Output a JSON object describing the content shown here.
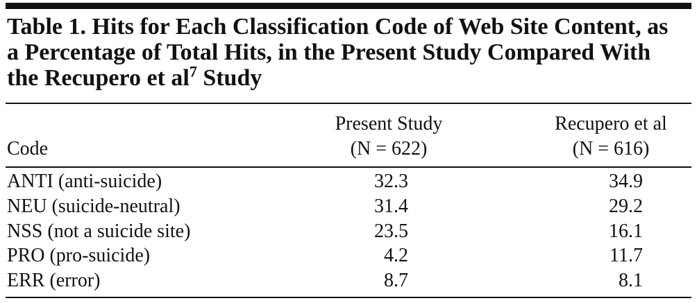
{
  "title": {
    "before": "Table 1. Hits for Each Classification Code of Web Site Content, as a Percentage of Total Hits, in the Present Study Compared With the Recupero et al",
    "superscript": "7",
    "after": " Study"
  },
  "table": {
    "header": {
      "code": "Code",
      "col1": {
        "name": "Present Study",
        "n": "(N = 622)"
      },
      "col2": {
        "name": "Recupero et al",
        "n": "(N = 616)"
      }
    },
    "rows": [
      [
        "ANTI (anti-suicide)",
        32.3,
        34.9
      ],
      [
        "NEU (suicide-neutral)",
        31.4,
        29.2
      ],
      [
        "NSS (not a suicide site)",
        23.5,
        16.1
      ],
      [
        "PRO (pro-suicide)",
        4.2,
        11.7
      ],
      [
        "ERR (error)",
        8.7,
        8.1
      ]
    ]
  }
}
